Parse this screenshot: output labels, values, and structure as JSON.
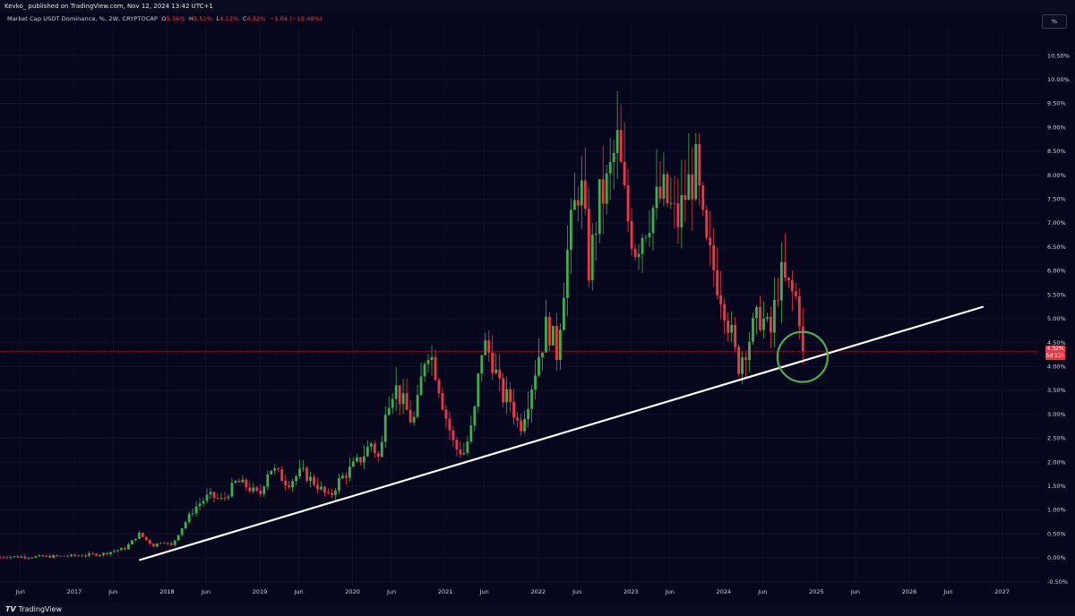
{
  "header": {
    "published_text": "Kevko_ published on TradingView.com, Nov 12, 2024 13:42 UTC+1"
  },
  "legend": {
    "symbol_text": "Market Cap USDT Dominance, %, 2W, CRYPTOCAP",
    "o_label": "O",
    "o_value": "5.36%",
    "h_label": "H",
    "h_value": "5.51%",
    "l_label": "L",
    "l_value": "4.12%",
    "c_label": "C",
    "c_value": "4.32%",
    "change_value": "−1.04 (−19.48%)"
  },
  "toolbar": {
    "percent_button": "%"
  },
  "price_label": {
    "value": "4.32%",
    "countdown": "5d 12h"
  },
  "footer": {
    "brand": "TradingView"
  },
  "colors": {
    "background": "#06061c",
    "up": "#26a69a",
    "up_bright": "#3fae4e",
    "down": "#f23645",
    "trendline": "#ffffff",
    "circle": "#4caf50",
    "price_line": "#f23645"
  },
  "chart_data": {
    "type": "candlestick",
    "title": "Market Cap USDT Dominance, %, 2W, CRYPTOCAP",
    "ylim": [
      -0.6,
      11.1
    ],
    "xlim": [
      2016.2,
      2027.4
    ],
    "y_ticks": [
      "10.50%",
      "10.00%",
      "9.50%",
      "9.00%",
      "8.50%",
      "8.00%",
      "7.50%",
      "7.00%",
      "6.50%",
      "6.00%",
      "5.50%",
      "5.00%",
      "4.50%",
      "4.00%",
      "3.50%",
      "3.00%",
      "2.50%",
      "2.00%",
      "1.50%",
      "1.00%",
      "0.50%",
      "0.00%",
      "-0.50%"
    ],
    "x_ticks": [
      "Jun",
      "2017",
      "Jun",
      "2018",
      "Jun",
      "2019",
      "Jun",
      "2020",
      "Jun",
      "2021",
      "Jun",
      "2022",
      "Jun",
      "2023",
      "Jun",
      "2024",
      "Jun",
      "2025",
      "Jun",
      "2026",
      "Jun",
      "2027"
    ],
    "last_value": 4.32,
    "trendline": {
      "start": [
        2017.7,
        -0.05
      ],
      "end": [
        2026.8,
        5.25
      ]
    },
    "highlight_circle": {
      "center": [
        2024.85,
        4.2
      ],
      "label": ""
    },
    "close_path": [
      [
        2016.2,
        0.02
      ],
      [
        2016.6,
        0.02
      ],
      [
        2017.0,
        0.04
      ],
      [
        2017.3,
        0.08
      ],
      [
        2017.55,
        0.2
      ],
      [
        2017.7,
        0.5
      ],
      [
        2017.85,
        0.25
      ],
      [
        2017.95,
        0.35
      ],
      [
        2018.05,
        0.25
      ],
      [
        2018.15,
        0.6
      ],
      [
        2018.3,
        1.05
      ],
      [
        2018.45,
        1.3
      ],
      [
        2018.6,
        1.2
      ],
      [
        2018.75,
        1.6
      ],
      [
        2018.85,
        1.5
      ],
      [
        2019.0,
        1.3
      ],
      [
        2019.1,
        1.9
      ],
      [
        2019.2,
        1.75
      ],
      [
        2019.3,
        1.55
      ],
      [
        2019.45,
        1.8
      ],
      [
        2019.6,
        1.55
      ],
      [
        2019.75,
        1.25
      ],
      [
        2019.85,
        1.6
      ],
      [
        2020.0,
        1.9
      ],
      [
        2020.1,
        2.1
      ],
      [
        2020.2,
        2.4
      ],
      [
        2020.3,
        2.0
      ],
      [
        2020.35,
        3.2
      ],
      [
        2020.45,
        3.6
      ],
      [
        2020.55,
        3.2
      ],
      [
        2020.65,
        2.8
      ],
      [
        2020.7,
        3.2
      ],
      [
        2020.8,
        4.5
      ],
      [
        2020.9,
        3.9
      ],
      [
        2021.0,
        3.0
      ],
      [
        2021.1,
        2.3
      ],
      [
        2021.2,
        2.2
      ],
      [
        2021.3,
        2.8
      ],
      [
        2021.4,
        4.5
      ],
      [
        2021.5,
        4.2
      ],
      [
        2021.6,
        3.4
      ],
      [
        2021.7,
        3.3
      ],
      [
        2021.8,
        2.7
      ],
      [
        2021.9,
        3.4
      ],
      [
        2022.0,
        4.2
      ],
      [
        2022.1,
        4.9
      ],
      [
        2022.2,
        4.3
      ],
      [
        2022.3,
        6.2
      ],
      [
        2022.45,
        8.0
      ],
      [
        2022.55,
        6.0
      ],
      [
        2022.65,
        7.4
      ],
      [
        2022.75,
        7.8
      ],
      [
        2022.85,
        8.7
      ],
      [
        2022.95,
        7.2
      ],
      [
        2023.05,
        6.5
      ],
      [
        2023.2,
        7.2
      ],
      [
        2023.35,
        7.6
      ],
      [
        2023.5,
        7.0
      ],
      [
        2023.6,
        7.7
      ],
      [
        2023.7,
        8.1
      ],
      [
        2023.8,
        6.5
      ],
      [
        2023.9,
        6.0
      ],
      [
        2024.0,
        5.4
      ],
      [
        2024.15,
        4.0
      ],
      [
        2024.25,
        4.5
      ],
      [
        2024.4,
        5.1
      ],
      [
        2024.5,
        4.6
      ],
      [
        2024.6,
        5.9
      ],
      [
        2024.7,
        5.6
      ],
      [
        2024.8,
        5.36
      ],
      [
        2024.86,
        4.32
      ]
    ]
  }
}
